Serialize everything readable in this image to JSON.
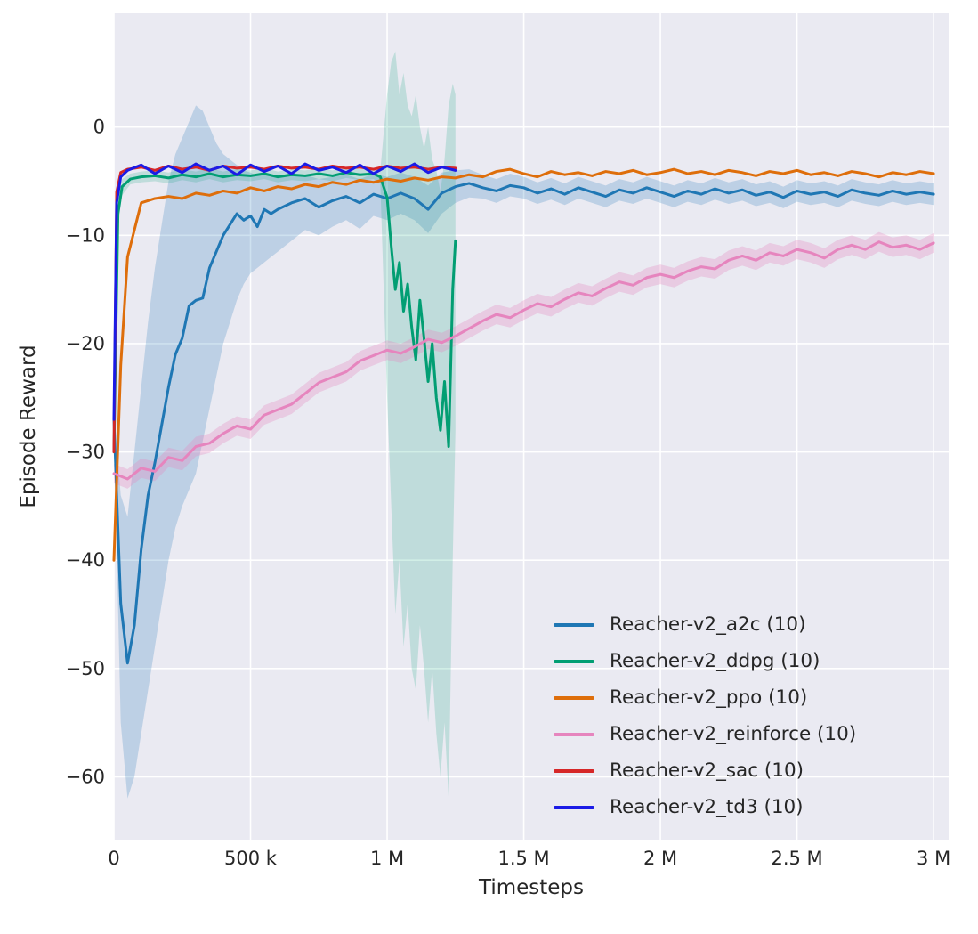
{
  "figure": {
    "background": "#ffffff"
  },
  "chart_data": {
    "type": "line",
    "title": "",
    "xlabel": "Timesteps",
    "ylabel": "Episode Reward",
    "x_unit": "thousands of timesteps",
    "xlim": [
      0,
      3055
    ],
    "ylim": [
      -65.8,
      10.5
    ],
    "grid": true,
    "plot_background": "#eaeaf2",
    "grid_color": "#ffffff",
    "tick_color": "#262626",
    "legend_position": "lower right",
    "x_ticks": [
      {
        "value": 0,
        "label": "0"
      },
      {
        "value": 500,
        "label": "500 k"
      },
      {
        "value": 1000,
        "label": "1 M"
      },
      {
        "value": 1500,
        "label": "1.5 M"
      },
      {
        "value": 2000,
        "label": "2 M"
      },
      {
        "value": 2500,
        "label": "2.5 M"
      },
      {
        "value": 3000,
        "label": "3 M"
      }
    ],
    "y_ticks": [
      {
        "value": 0,
        "label": "0"
      },
      {
        "value": -10,
        "label": "−10"
      },
      {
        "value": -20,
        "label": "−20"
      },
      {
        "value": -30,
        "label": "−30"
      },
      {
        "value": -40,
        "label": "−40"
      },
      {
        "value": -50,
        "label": "−50"
      },
      {
        "value": -60,
        "label": "−60"
      }
    ],
    "series": [
      {
        "key": "a2c",
        "name": "Reacher-v2_a2c (10)",
        "color": "#1f77b4",
        "band_opacity": 0.22,
        "x": [
          0,
          25,
          50,
          75,
          100,
          125,
          150,
          175,
          200,
          225,
          250,
          275,
          300,
          325,
          350,
          375,
          400,
          425,
          450,
          475,
          500,
          525,
          550,
          575,
          600,
          650,
          700,
          750,
          800,
          850,
          900,
          950,
          1000,
          1050,
          1100,
          1150,
          1200,
          1250,
          1300,
          1350,
          1400,
          1450,
          1500,
          1550,
          1600,
          1650,
          1700,
          1750,
          1800,
          1850,
          1900,
          1950,
          2000,
          2050,
          2100,
          2150,
          2200,
          2250,
          2300,
          2350,
          2400,
          2450,
          2500,
          2550,
          2600,
          2650,
          2700,
          2750,
          2800,
          2850,
          2900,
          2950,
          3000
        ],
        "y": [
          -27,
          -44,
          -49.5,
          -46,
          -39,
          -34,
          -31,
          -27.5,
          -24,
          -21,
          -19.5,
          -16.5,
          -16,
          -15.8,
          -13,
          -11.5,
          -10,
          -9,
          -8,
          -8.6,
          -8.2,
          -9.2,
          -7.6,
          -8.0,
          -7.6,
          -7.0,
          -6.6,
          -7.4,
          -6.8,
          -6.4,
          -7.0,
          -6.2,
          -6.6,
          -6.1,
          -6.6,
          -7.6,
          -6.1,
          -5.5,
          -5.2,
          -5.6,
          -5.9,
          -5.4,
          -5.6,
          -6.1,
          -5.7,
          -6.2,
          -5.6,
          -6.0,
          -6.4,
          -5.8,
          -6.1,
          -5.6,
          -6.0,
          -6.4,
          -5.9,
          -6.2,
          -5.7,
          -6.1,
          -5.8,
          -6.3,
          -6.0,
          -6.5,
          -5.9,
          -6.2,
          -6.0,
          -6.4,
          -5.8,
          -6.1,
          -6.3,
          -5.9,
          -6.2,
          -6.0,
          -6.2
        ],
        "band": {
          "low": [
            -28,
            -55,
            -62,
            -60,
            -56,
            -52,
            -48,
            -44,
            -40,
            -37,
            -35,
            -33.5,
            -32,
            -29,
            -26,
            -23,
            -20,
            -18,
            -16,
            -14.5,
            -13.5,
            -13,
            -12.5,
            -12,
            -11.5,
            -10.5,
            -9.5,
            -10,
            -9.2,
            -8.6,
            -9.4,
            -8.2,
            -8.6,
            -8.0,
            -8.6,
            -9.8,
            -8.0,
            -7.0,
            -6.5,
            -6.6,
            -7.0,
            -6.4,
            -6.6,
            -7.1,
            -6.7,
            -7.2,
            -6.6,
            -7.0,
            -7.4,
            -6.8,
            -7.1,
            -6.6,
            -7.0,
            -7.4,
            -6.9,
            -7.2,
            -6.7,
            -7.1,
            -6.8,
            -7.3,
            -7.0,
            -7.5,
            -6.9,
            -7.2,
            -7.0,
            -7.4,
            -6.8,
            -7.1,
            -7.3,
            -6.9,
            -7.2,
            -7.0,
            -7.2
          ],
          "high": [
            -26,
            -34,
            -36,
            -30,
            -24,
            -18,
            -13,
            -9,
            -5,
            -2.5,
            -1,
            0.5,
            2,
            1.5,
            0,
            -1.5,
            -2.5,
            -3,
            -3.5,
            -4,
            -4.2,
            -4.5,
            -4.3,
            -4.6,
            -4.4,
            -4.5,
            -4.4,
            -4.8,
            -4.6,
            -4.4,
            -4.8,
            -4.3,
            -4.6,
            -4.2,
            -4.6,
            -5.4,
            -4.2,
            -4.0,
            -3.9,
            -4.4,
            -4.8,
            -4.3,
            -4.6,
            -5.1,
            -4.7,
            -5.2,
            -4.6,
            -5.0,
            -5.4,
            -4.8,
            -5.1,
            -4.6,
            -5.0,
            -5.4,
            -4.9,
            -5.2,
            -4.7,
            -5.1,
            -4.8,
            -5.3,
            -5.0,
            -5.5,
            -4.9,
            -5.2,
            -5.0,
            -5.4,
            -4.8,
            -5.1,
            -5.3,
            -4.9,
            -5.2,
            -5.0,
            -5.2
          ]
        }
      },
      {
        "key": "ddpg",
        "name": "Reacher-v2_ddpg (10)",
        "color": "#029e73",
        "band_opacity": 0.18,
        "x": [
          0,
          15,
          30,
          60,
          100,
          150,
          200,
          250,
          300,
          350,
          400,
          450,
          500,
          550,
          600,
          650,
          700,
          750,
          800,
          850,
          900,
          950,
          975,
          1000,
          1015,
          1030,
          1045,
          1060,
          1075,
          1090,
          1105,
          1120,
          1135,
          1150,
          1165,
          1180,
          1195,
          1210,
          1225,
          1240,
          1250
        ],
        "y": [
          -30,
          -8,
          -5.5,
          -4.8,
          -4.6,
          -4.5,
          -4.7,
          -4.4,
          -4.6,
          -4.3,
          -4.6,
          -4.4,
          -4.5,
          -4.3,
          -4.6,
          -4.4,
          -4.5,
          -4.3,
          -4.5,
          -4.2,
          -4.4,
          -4.3,
          -4.6,
          -6.5,
          -11,
          -15,
          -12.5,
          -17,
          -14.5,
          -18.5,
          -21.5,
          -16,
          -19.5,
          -23.5,
          -20,
          -25,
          -28,
          -23.5,
          -29.5,
          -15,
          -10.5
        ],
        "band": {
          "low": [
            -31,
            -9,
            -6.3,
            -5.3,
            -5.1,
            -5.0,
            -5.2,
            -4.9,
            -5.1,
            -4.8,
            -5.1,
            -4.9,
            -5.0,
            -4.8,
            -5.1,
            -4.9,
            -5.0,
            -4.8,
            -5.0,
            -4.7,
            -4.9,
            -4.8,
            -5.2,
            -25,
            -35,
            -45,
            -40,
            -48,
            -44,
            -50,
            -52,
            -46,
            -50,
            -55,
            -50,
            -56,
            -60,
            -55,
            -62,
            -40,
            -28
          ],
          "high": [
            -29,
            -7,
            -4.8,
            -4.3,
            -4.1,
            -4.0,
            -4.2,
            -3.9,
            -4.1,
            -3.8,
            -4.1,
            -3.9,
            -4.0,
            -3.8,
            -4.1,
            -3.9,
            -4.0,
            -3.8,
            -4.0,
            -3.7,
            -3.9,
            -3.8,
            -4.0,
            3,
            6,
            7,
            3,
            5,
            2,
            1,
            3,
            0,
            -2,
            0,
            -3,
            -4,
            -6,
            -3,
            2,
            4,
            3
          ]
        }
      },
      {
        "key": "ppo",
        "name": "Reacher-v2_ppo (10)",
        "color": "#de6e0b",
        "x": [
          0,
          25,
          50,
          100,
          150,
          200,
          250,
          300,
          350,
          400,
          450,
          500,
          550,
          600,
          650,
          700,
          750,
          800,
          850,
          900,
          950,
          1000,
          1050,
          1100,
          1150,
          1200,
          1250,
          1300,
          1350,
          1400,
          1450,
          1500,
          1550,
          1600,
          1650,
          1700,
          1750,
          1800,
          1850,
          1900,
          1950,
          2000,
          2050,
          2100,
          2150,
          2200,
          2250,
          2300,
          2350,
          2400,
          2450,
          2500,
          2550,
          2600,
          2650,
          2700,
          2750,
          2800,
          2850,
          2900,
          2950,
          3000
        ],
        "y": [
          -40,
          -22,
          -12,
          -7.0,
          -6.6,
          -6.4,
          -6.6,
          -6.1,
          -6.3,
          -5.9,
          -6.1,
          -5.6,
          -5.9,
          -5.5,
          -5.7,
          -5.3,
          -5.5,
          -5.1,
          -5.3,
          -4.9,
          -5.1,
          -4.8,
          -5.0,
          -4.7,
          -4.9,
          -4.6,
          -4.7,
          -4.4,
          -4.6,
          -4.1,
          -3.9,
          -4.3,
          -4.6,
          -4.1,
          -4.4,
          -4.2,
          -4.5,
          -4.1,
          -4.3,
          -4.0,
          -4.4,
          -4.2,
          -3.9,
          -4.3,
          -4.1,
          -4.4,
          -4.0,
          -4.2,
          -4.5,
          -4.1,
          -4.3,
          -4.0,
          -4.4,
          -4.2,
          -4.5,
          -4.1,
          -4.3,
          -4.6,
          -4.2,
          -4.4,
          -4.1,
          -4.3
        ]
      },
      {
        "key": "reinforce",
        "name": "Reacher-v2_reinforce (10)",
        "color": "#e685be",
        "band_opacity": 0.3,
        "x": [
          0,
          50,
          100,
          150,
          200,
          250,
          300,
          350,
          400,
          450,
          500,
          550,
          600,
          650,
          700,
          750,
          800,
          850,
          900,
          950,
          1000,
          1050,
          1100,
          1150,
          1200,
          1250,
          1300,
          1350,
          1400,
          1450,
          1500,
          1550,
          1600,
          1650,
          1700,
          1750,
          1800,
          1850,
          1900,
          1950,
          2000,
          2050,
          2100,
          2150,
          2200,
          2250,
          2300,
          2350,
          2400,
          2450,
          2500,
          2550,
          2600,
          2650,
          2700,
          2750,
          2800,
          2850,
          2900,
          2950,
          3000
        ],
        "y": [
          -32,
          -32.5,
          -31.5,
          -31.8,
          -30.5,
          -30.8,
          -29.5,
          -29.2,
          -28.3,
          -27.6,
          -27.9,
          -26.6,
          -26.1,
          -25.6,
          -24.6,
          -23.6,
          -23.1,
          -22.6,
          -21.6,
          -21.1,
          -20.6,
          -20.9,
          -20.3,
          -19.6,
          -19.9,
          -19.3,
          -18.6,
          -17.9,
          -17.3,
          -17.6,
          -16.9,
          -16.3,
          -16.6,
          -15.9,
          -15.3,
          -15.6,
          -14.9,
          -14.3,
          -14.6,
          -13.9,
          -13.6,
          -13.9,
          -13.3,
          -12.9,
          -13.1,
          -12.3,
          -11.9,
          -12.3,
          -11.6,
          -11.9,
          -11.3,
          -11.6,
          -12.1,
          -11.3,
          -10.9,
          -11.3,
          -10.6,
          -11.1,
          -10.9,
          -11.3,
          -10.7
        ],
        "band": {
          "low": [
            -32.9,
            -33.4,
            -32.4,
            -32.7,
            -31.4,
            -31.7,
            -30.4,
            -30.1,
            -29.2,
            -28.5,
            -28.8,
            -27.5,
            -27.0,
            -26.5,
            -25.5,
            -24.5,
            -24.0,
            -23.5,
            -22.5,
            -22.0,
            -21.5,
            -21.8,
            -21.2,
            -20.5,
            -20.8,
            -20.2,
            -19.5,
            -18.8,
            -18.2,
            -18.5,
            -17.8,
            -17.2,
            -17.5,
            -16.8,
            -16.2,
            -16.5,
            -15.8,
            -15.2,
            -15.5,
            -14.8,
            -14.5,
            -14.8,
            -14.2,
            -13.8,
            -14.0,
            -13.2,
            -12.8,
            -13.2,
            -12.5,
            -12.8,
            -12.2,
            -12.5,
            -13.0,
            -12.2,
            -11.8,
            -12.2,
            -11.5,
            -12.0,
            -11.8,
            -12.2,
            -11.6
          ],
          "high": [
            -31.1,
            -31.6,
            -30.6,
            -30.9,
            -29.6,
            -29.9,
            -28.6,
            -28.3,
            -27.4,
            -26.7,
            -27.0,
            -25.7,
            -25.2,
            -24.7,
            -23.7,
            -22.7,
            -22.2,
            -21.7,
            -20.7,
            -20.2,
            -19.7,
            -20.0,
            -19.4,
            -18.7,
            -19.0,
            -18.4,
            -17.7,
            -17.0,
            -16.4,
            -16.7,
            -16.0,
            -15.4,
            -15.7,
            -15.0,
            -14.4,
            -14.7,
            -14.0,
            -13.4,
            -13.7,
            -13.0,
            -12.7,
            -13.0,
            -12.4,
            -12.0,
            -12.2,
            -11.4,
            -11.0,
            -11.4,
            -10.7,
            -11.0,
            -10.4,
            -10.7,
            -11.2,
            -10.4,
            -10.0,
            -10.4,
            -9.7,
            -10.2,
            -10.0,
            -10.4,
            -9.8
          ]
        }
      },
      {
        "key": "sac",
        "name": "Reacher-v2_sac (10)",
        "color": "#d62728",
        "x": [
          0,
          10,
          25,
          50,
          100,
          150,
          200,
          250,
          300,
          350,
          400,
          450,
          500,
          550,
          600,
          650,
          700,
          750,
          800,
          850,
          900,
          950,
          1000,
          1050,
          1100,
          1150,
          1200,
          1250
        ],
        "y": [
          -30,
          -6,
          -4.2,
          -3.9,
          -3.7,
          -4.0,
          -3.6,
          -3.9,
          -3.7,
          -4.0,
          -3.6,
          -3.8,
          -3.7,
          -3.9,
          -3.6,
          -3.8,
          -3.7,
          -3.9,
          -3.6,
          -3.8,
          -3.7,
          -3.9,
          -3.6,
          -3.8,
          -3.7,
          -3.9,
          -3.7,
          -3.8
        ]
      },
      {
        "key": "td3",
        "name": "Reacher-v2_td3 (10)",
        "color": "#1b1be6",
        "x": [
          0,
          10,
          25,
          50,
          100,
          150,
          200,
          250,
          300,
          350,
          400,
          450,
          500,
          550,
          600,
          650,
          700,
          750,
          800,
          850,
          900,
          950,
          1000,
          1050,
          1100,
          1150,
          1200,
          1250
        ],
        "y": [
          -27,
          -7,
          -4.6,
          -4.0,
          -3.5,
          -4.3,
          -3.6,
          -4.2,
          -3.4,
          -4.0,
          -3.6,
          -4.4,
          -3.5,
          -4.1,
          -3.6,
          -4.3,
          -3.4,
          -4.0,
          -3.7,
          -4.2,
          -3.5,
          -4.3,
          -3.6,
          -4.1,
          -3.4,
          -4.2,
          -3.7,
          -4.0
        ]
      }
    ]
  }
}
